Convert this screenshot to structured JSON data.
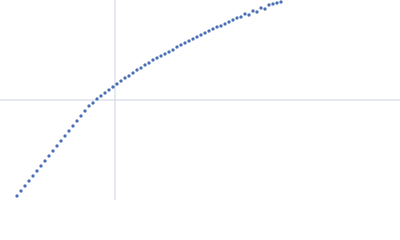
{
  "chart_data": {
    "type": "scatter",
    "color": "#4a6fb5",
    "xlim": [
      0,
      400
    ],
    "ylim": [
      0,
      200
    ],
    "x": [
      17,
      21,
      25,
      29,
      33,
      37,
      41,
      45,
      49,
      53,
      57,
      61,
      65,
      69,
      73,
      77,
      81,
      85,
      89,
      93,
      97,
      101,
      105,
      109,
      113,
      117,
      121,
      125,
      129,
      133,
      137,
      141,
      145,
      149,
      153,
      157,
      161,
      165,
      169,
      173,
      177,
      181,
      185,
      189,
      193,
      197,
      201,
      205,
      209,
      213,
      217,
      221,
      225,
      229,
      233,
      237,
      241,
      245,
      249,
      253,
      257,
      261,
      265,
      269,
      273,
      277,
      281
    ],
    "y": [
      4,
      9,
      14,
      19,
      24,
      29,
      34,
      39,
      44,
      49,
      54,
      59,
      64,
      69,
      74,
      79,
      84,
      89,
      94,
      97,
      101,
      104,
      107,
      110,
      113,
      116,
      119,
      122,
      124,
      127,
      130,
      132,
      135,
      137,
      140,
      142,
      144,
      146,
      148,
      150,
      153,
      155,
      157,
      159,
      161,
      163,
      165,
      167,
      169,
      171,
      173,
      174,
      176,
      178,
      180,
      182,
      183,
      186,
      185,
      189,
      188,
      192,
      191,
      195,
      196,
      197,
      198
    ]
  }
}
